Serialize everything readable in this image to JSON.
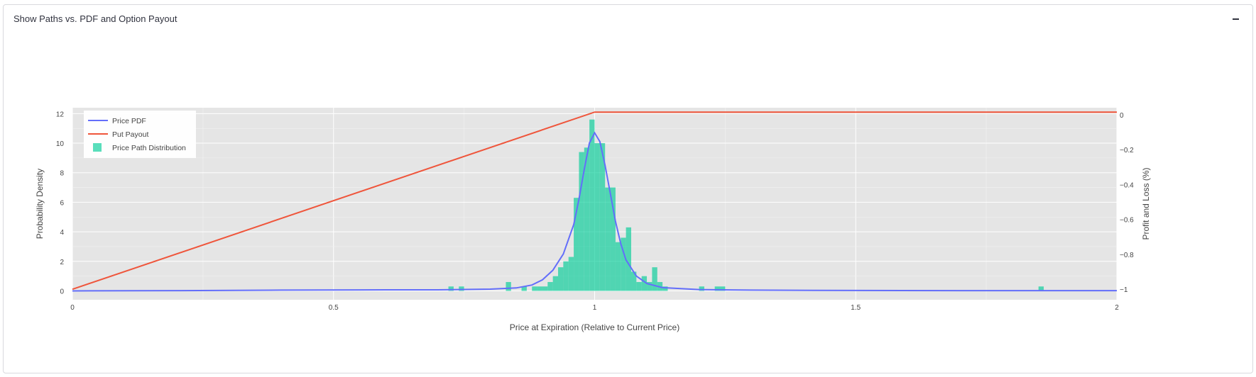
{
  "panel": {
    "title": "Show Paths vs. PDF and Option Payout",
    "collapse_icon": "minus-icon"
  },
  "chart_data": {
    "type": "bar",
    "title": "",
    "xlabel": "Price at Expiration (Relative to Current Price)",
    "ylabel": "Probability Density",
    "y2label": "Profit and Loss (%)",
    "xlim": [
      0,
      2
    ],
    "ylim": [
      -0.6,
      12.4
    ],
    "y2lim": [
      -1.06,
      0.04
    ],
    "xticks": [
      "0",
      "0.5",
      "1",
      "1.5",
      "2"
    ],
    "yticks": [
      "0",
      "2",
      "4",
      "6",
      "8",
      "10",
      "12"
    ],
    "y2ticks": [
      "0",
      "−0.2",
      "−0.4",
      "−0.6",
      "−0.8",
      "−1"
    ],
    "grid": true,
    "legend_position": "top-left",
    "colors": {
      "plot_bg": "#e5e5e5",
      "pdf": "#636efa",
      "payout": "#ef553b",
      "hist": "#00cc96"
    },
    "legend": [
      {
        "name": "Price PDF",
        "kind": "line",
        "color": "#636efa"
      },
      {
        "name": "Put Payout",
        "kind": "line",
        "color": "#ef553b"
      },
      {
        "name": "Price Path Distribution",
        "kind": "bar",
        "color": "#00cc96"
      }
    ],
    "histogram": {
      "name": "Price Path Distribution",
      "bin_width": 0.01,
      "bins": [
        {
          "x0": 0.72,
          "y": 0.3
        },
        {
          "x0": 0.74,
          "y": 0.3
        },
        {
          "x0": 0.83,
          "y": 0.6
        },
        {
          "x0": 0.86,
          "y": 0.3
        },
        {
          "x0": 0.88,
          "y": 0.3
        },
        {
          "x0": 0.89,
          "y": 0.3
        },
        {
          "x0": 0.9,
          "y": 0.3
        },
        {
          "x0": 0.91,
          "y": 0.6
        },
        {
          "x0": 0.92,
          "y": 1.0
        },
        {
          "x0": 0.93,
          "y": 1.6
        },
        {
          "x0": 0.94,
          "y": 2.0
        },
        {
          "x0": 0.95,
          "y": 2.3
        },
        {
          "x0": 0.96,
          "y": 6.3
        },
        {
          "x0": 0.97,
          "y": 9.4
        },
        {
          "x0": 0.98,
          "y": 9.7
        },
        {
          "x0": 0.99,
          "y": 11.6
        },
        {
          "x0": 1.0,
          "y": 10.0
        },
        {
          "x0": 1.01,
          "y": 10.0
        },
        {
          "x0": 1.02,
          "y": 7.0
        },
        {
          "x0": 1.03,
          "y": 7.0
        },
        {
          "x0": 1.04,
          "y": 3.3
        },
        {
          "x0": 1.05,
          "y": 3.6
        },
        {
          "x0": 1.06,
          "y": 4.3
        },
        {
          "x0": 1.07,
          "y": 1.3
        },
        {
          "x0": 1.08,
          "y": 0.6
        },
        {
          "x0": 1.09,
          "y": 1.0
        },
        {
          "x0": 1.1,
          "y": 0.6
        },
        {
          "x0": 1.11,
          "y": 1.6
        },
        {
          "x0": 1.12,
          "y": 0.6
        },
        {
          "x0": 1.13,
          "y": 0.3
        },
        {
          "x0": 1.2,
          "y": 0.3
        },
        {
          "x0": 1.23,
          "y": 0.3
        },
        {
          "x0": 1.24,
          "y": 0.3
        },
        {
          "x0": 1.85,
          "y": 0.3
        }
      ]
    },
    "pdf": {
      "name": "Price PDF",
      "axis": "y",
      "points": [
        [
          0,
          0
        ],
        [
          0.2,
          0.02
        ],
        [
          0.4,
          0.05
        ],
        [
          0.6,
          0.07
        ],
        [
          0.7,
          0.07
        ],
        [
          0.8,
          0.12
        ],
        [
          0.85,
          0.2
        ],
        [
          0.88,
          0.4
        ],
        [
          0.9,
          0.75
        ],
        [
          0.92,
          1.4
        ],
        [
          0.94,
          2.5
        ],
        [
          0.96,
          4.5
        ],
        [
          0.97,
          6.2
        ],
        [
          0.98,
          8.2
        ],
        [
          0.99,
          10.0
        ],
        [
          1.0,
          10.7
        ],
        [
          1.01,
          10.1
        ],
        [
          1.02,
          8.5
        ],
        [
          1.03,
          6.6
        ],
        [
          1.04,
          4.7
        ],
        [
          1.05,
          3.2
        ],
        [
          1.06,
          2.1
        ],
        [
          1.08,
          1.0
        ],
        [
          1.1,
          0.5
        ],
        [
          1.13,
          0.22
        ],
        [
          1.2,
          0.09
        ],
        [
          1.3,
          0.05
        ],
        [
          1.5,
          0.03
        ],
        [
          1.7,
          0.02
        ],
        [
          2.0,
          0.02
        ]
      ]
    },
    "payout": {
      "name": "Put Payout",
      "axis": "y2",
      "points": [
        [
          0,
          -1
        ],
        [
          1.0,
          0.015
        ],
        [
          2.0,
          0.015
        ]
      ]
    }
  }
}
